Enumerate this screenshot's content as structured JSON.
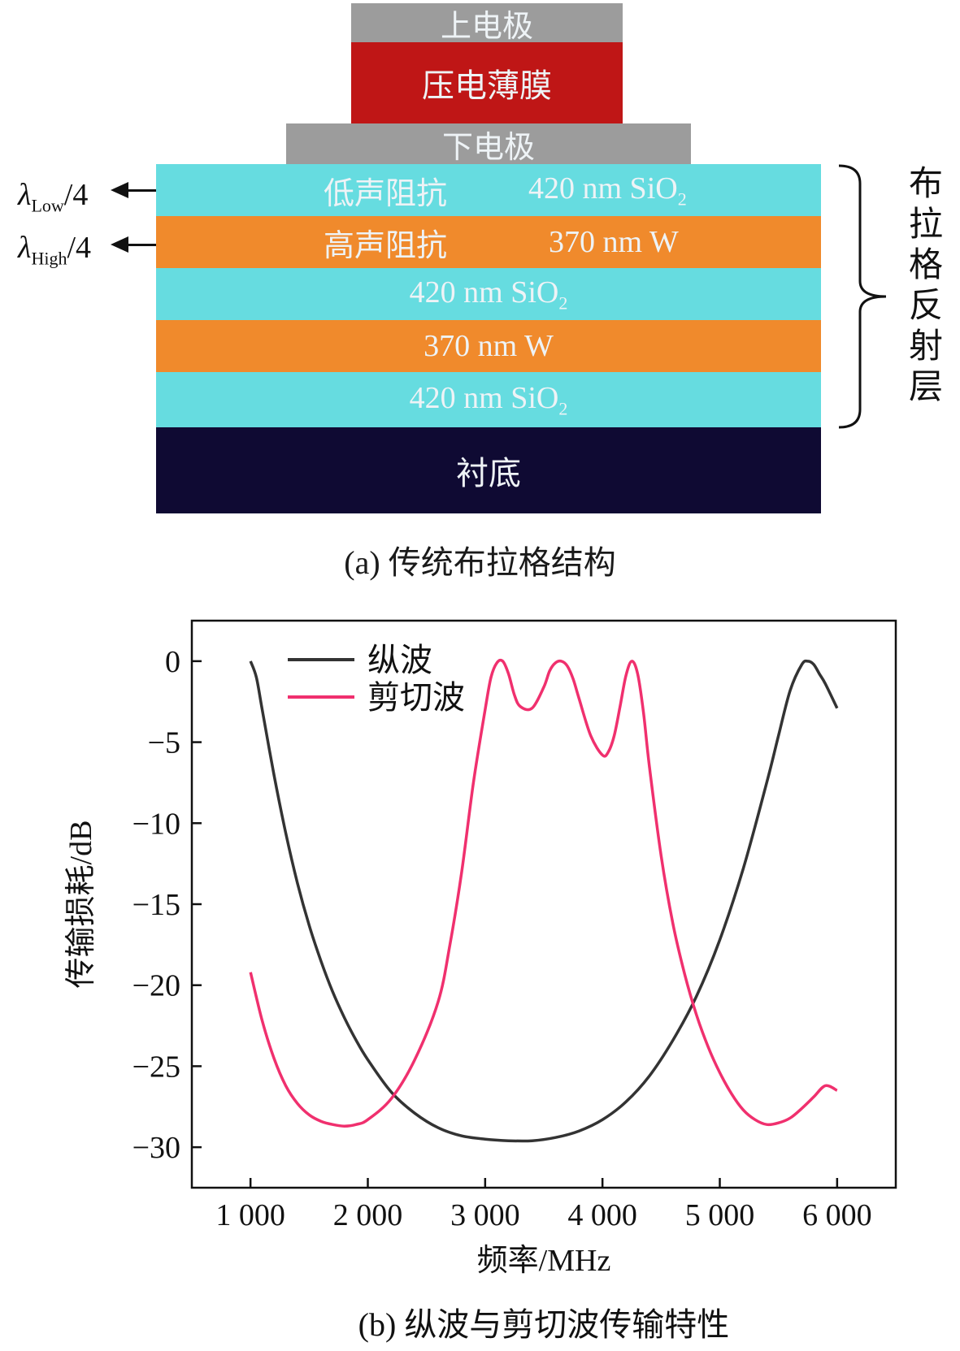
{
  "diagram": {
    "top_electrode": "上电极",
    "piezo_film": "压电薄膜",
    "bottom_electrode": "下电极",
    "layers": [
      {
        "left": "低声阻抗",
        "right": "420 nm SiO",
        "sub": "2",
        "color": "#66dce0"
      },
      {
        "left": "高声阻抗",
        "right": "370 nm W",
        "sub": "",
        "color": "#f08a2c"
      },
      {
        "left": "",
        "right": "420 nm SiO",
        "sub": "2",
        "color": "#66dce0"
      },
      {
        "left": "",
        "right": "370 nm W",
        "sub": "",
        "color": "#f08a2c"
      },
      {
        "left": "",
        "right": "420 nm SiO",
        "sub": "2",
        "color": "#66dce0"
      }
    ],
    "substrate": "衬底",
    "lambda_low": {
      "sym": "λ",
      "sub": "Low",
      "rest": "/4"
    },
    "lambda_high": {
      "sym": "λ",
      "sub": "High",
      "rest": "/4"
    },
    "bragg_label": "布拉格反射层",
    "caption": "(a) 传统布拉格结构",
    "colors": {
      "electrode": "#9c9c9c",
      "piezo": "#bf1616",
      "low_z": "#66dce0",
      "high_z": "#f08a2c",
      "substrate": "#0f0a33"
    }
  },
  "chart_data": {
    "type": "line",
    "xlabel": "频率/MHz",
    "ylabel": "传输损耗/dB",
    "xlim": [
      500,
      6500
    ],
    "ylim": [
      -32.5,
      2.5
    ],
    "xticks": [
      1000,
      2000,
      3000,
      4000,
      5000,
      6000
    ],
    "xtick_labels": [
      "1 000",
      "2 000",
      "3 000",
      "4 000",
      "5 000",
      "6 000"
    ],
    "yticks": [
      0,
      -5,
      -10,
      -15,
      -20,
      -25,
      -30
    ],
    "ytick_labels": [
      "0",
      "−5",
      "−10",
      "−15",
      "−20",
      "−25",
      "−30"
    ],
    "grid": false,
    "legend_position": "top-left",
    "series": [
      {
        "name": "纵波",
        "color": "#333333",
        "x": [
          1000,
          1050,
          1100,
          1200,
          1300,
          1400,
          1500,
          1600,
          1700,
          1800,
          1900,
          2000,
          2200,
          2400,
          2600,
          2800,
          3000,
          3200,
          3400,
          3600,
          3800,
          4000,
          4200,
          4400,
          4600,
          4800,
          5000,
          5200,
          5400,
          5500,
          5600,
          5700,
          5750,
          5800,
          5850,
          5900,
          6000
        ],
        "y": [
          0,
          -1,
          -3,
          -7,
          -10.6,
          -13.7,
          -16.3,
          -18.5,
          -20.4,
          -22,
          -23.4,
          -24.6,
          -26.6,
          -27.9,
          -28.8,
          -29.3,
          -29.5,
          -29.6,
          -29.6,
          -29.4,
          -29,
          -28.3,
          -27.2,
          -25.6,
          -23.4,
          -20.7,
          -17.2,
          -12.8,
          -7.5,
          -4.6,
          -1.8,
          -0.2,
          0,
          -0.2,
          -0.8,
          -1.4,
          -2.9
        ]
      },
      {
        "name": "剪切波",
        "color": "#f0306e",
        "x": [
          1000,
          1100,
          1200,
          1300,
          1400,
          1500,
          1600,
          1700,
          1800,
          1900,
          2000,
          2200,
          2400,
          2600,
          2700,
          2800,
          2900,
          3000,
          3050,
          3100,
          3150,
          3200,
          3250,
          3300,
          3400,
          3500,
          3550,
          3600,
          3650,
          3700,
          3750,
          3800,
          3900,
          4000,
          4050,
          4100,
          4150,
          4200,
          4250,
          4300,
          4350,
          4400,
          4500,
          4600,
          4700,
          4800,
          4900,
          5000,
          5100,
          5200,
          5300,
          5400,
          5500,
          5600,
          5700,
          5800,
          5900,
          6000
        ],
        "y": [
          -19.2,
          -22.2,
          -24.5,
          -26.2,
          -27.3,
          -28,
          -28.4,
          -28.6,
          -28.7,
          -28.6,
          -28.3,
          -27,
          -24.6,
          -21,
          -17.5,
          -13,
          -7.5,
          -3,
          -1,
          -0.1,
          0,
          -0.8,
          -2.1,
          -2.8,
          -2.9,
          -1.6,
          -0.6,
          -0.1,
          0,
          -0.3,
          -1.1,
          -2.3,
          -4.6,
          -5.8,
          -5.6,
          -4.6,
          -2.8,
          -0.9,
          0,
          -0.8,
          -3.2,
          -6.5,
          -12,
          -16.2,
          -19.3,
          -21.8,
          -23.8,
          -25.4,
          -26.7,
          -27.7,
          -28.3,
          -28.6,
          -28.5,
          -28.2,
          -27.6,
          -26.9,
          -26.2,
          -26.5
        ]
      }
    ],
    "caption": "(b) 纵波与剪切波传输特性"
  }
}
